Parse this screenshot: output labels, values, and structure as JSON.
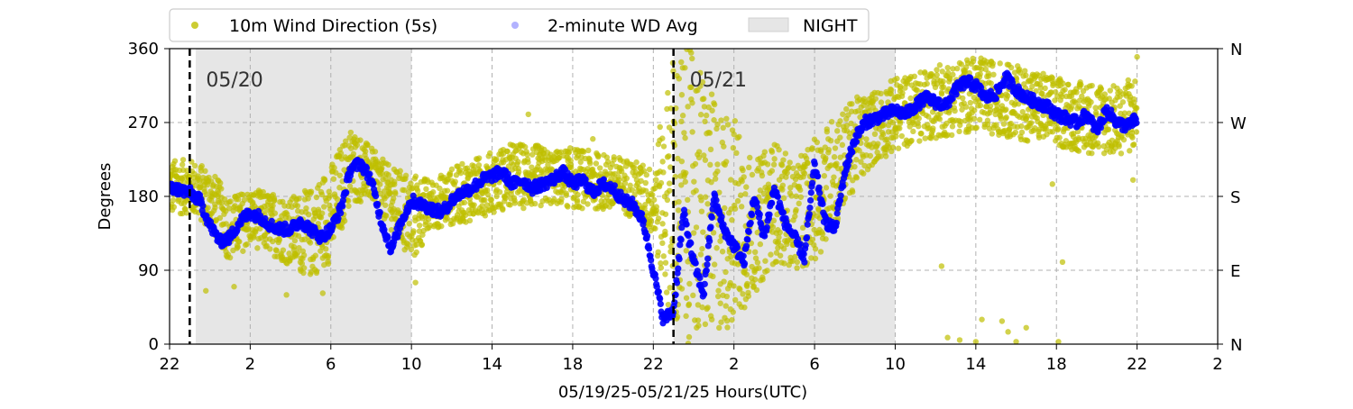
{
  "chart_data": {
    "type": "scatter",
    "xlabel": "05/19/25-05/21/25  Hours(UTC)",
    "ylabel": "Degrees",
    "ylim": [
      0,
      360
    ],
    "xlim_hours": [
      0,
      52
    ],
    "x_tick_labels": [
      "22",
      "2",
      "6",
      "10",
      "14",
      "18",
      "22",
      "2",
      "6",
      "10",
      "14",
      "18",
      "22",
      "2"
    ],
    "x_tick_hours": [
      0,
      4,
      8,
      12,
      16,
      20,
      24,
      28,
      32,
      36,
      40,
      44,
      48,
      52
    ],
    "y_tick_values": [
      0,
      90,
      180,
      270,
      360
    ],
    "y_tick_labels": [
      "0",
      "90",
      "180",
      "270",
      "360"
    ],
    "y_right_labels": [
      "N",
      "E",
      "S",
      "W",
      "N"
    ],
    "grid": true,
    "legend": {
      "placement": "top-outside",
      "entries": [
        {
          "label": "10m Wind Direction (5s)",
          "color": "#bfbf00",
          "marker": "circle"
        },
        {
          "label": "2-minute WD Avg",
          "color": "#0000ff",
          "marker": "circle"
        },
        {
          "label": "NIGHT",
          "color": "#e6e6e6",
          "marker": "patch"
        }
      ]
    },
    "night_shading_hours": [
      [
        1.3,
        12.0
      ],
      [
        25.0,
        36.0
      ]
    ],
    "day_boundaries": [
      {
        "hour": 1.0,
        "label": "05/20"
      },
      {
        "hour": 25.0,
        "label": "05/21"
      }
    ],
    "colors": {
      "wind_5s": "#bfbf00",
      "avg_2min": "#0000ff",
      "night": "#e6e6e6",
      "day_line": "#000000"
    },
    "series": [
      {
        "name": "2-minute WD Avg",
        "hours": [
          0,
          0.5,
          1,
          1.5,
          2,
          2.5,
          3,
          3.5,
          4,
          4.5,
          5,
          5.5,
          6,
          6.5,
          7,
          7.5,
          8,
          8.5,
          9,
          9.5,
          10,
          10.5,
          11,
          11.5,
          12,
          12.5,
          13,
          13.5,
          14,
          14.5,
          15,
          15.5,
          16,
          16.5,
          17,
          17.5,
          18,
          18.5,
          19,
          19.5,
          20,
          20.5,
          21,
          21.5,
          22,
          22.5,
          23,
          23.5,
          24,
          24.5,
          25,
          25.5,
          26,
          26.5,
          27,
          27.5,
          28,
          28.5,
          29,
          29.5,
          30,
          30.5,
          31,
          31.5,
          32,
          32.5,
          33,
          33.5,
          34,
          34.5,
          35,
          35.5,
          36,
          36.5,
          37,
          37.5,
          38,
          38.5,
          39,
          39.5,
          40,
          40.5,
          41,
          41.5,
          42,
          42.5,
          43,
          43.5,
          44,
          44.5,
          45,
          45.5,
          46,
          46.5,
          47,
          47.5,
          48
        ],
        "values": [
          190,
          188,
          185,
          175,
          145,
          125,
          130,
          150,
          160,
          155,
          145,
          140,
          140,
          150,
          140,
          130,
          140,
          165,
          215,
          220,
          200,
          150,
          115,
          150,
          175,
          170,
          165,
          160,
          175,
          185,
          190,
          200,
          205,
          210,
          195,
          200,
          190,
          195,
          200,
          210,
          195,
          200,
          185,
          195,
          190,
          175,
          170,
          150,
          90,
          30,
          40,
          160,
          100,
          60,
          180,
          140,
          120,
          100,
          180,
          130,
          190,
          150,
          130,
          105,
          220,
          150,
          140,
          210,
          250,
          270,
          275,
          280,
          285,
          280,
          290,
          300,
          295,
          290,
          310,
          320,
          315,
          300,
          305,
          325,
          310,
          300,
          295,
          290,
          280,
          275,
          270,
          280,
          260,
          285,
          270,
          265,
          275
        ]
      },
      {
        "name": "10m Wind Direction (5s)",
        "band_hours": [
          0,
          1,
          2,
          3,
          4,
          5,
          6,
          7,
          8,
          9,
          10,
          11,
          12,
          13,
          14,
          15,
          16,
          17,
          18,
          19,
          20,
          21,
          22,
          23,
          24,
          25,
          26,
          27,
          28,
          29,
          30,
          31,
          32,
          33,
          34,
          35,
          36,
          37,
          38,
          39,
          40,
          41,
          42,
          43,
          44,
          45,
          46,
          47,
          48
        ],
        "band_low": [
          155,
          160,
          140,
          100,
          120,
          110,
          95,
          80,
          100,
          170,
          175,
          140,
          95,
          140,
          145,
          150,
          160,
          165,
          165,
          170,
          165,
          165,
          160,
          155,
          130,
          0,
          0,
          10,
          20,
          60,
          100,
          90,
          100,
          140,
          190,
          220,
          235,
          245,
          250,
          255,
          260,
          255,
          250,
          245,
          240,
          235,
          230,
          230,
          235
        ],
        "band_high": [
          225,
          225,
          215,
          180,
          190,
          185,
          180,
          190,
          220,
          265,
          240,
          215,
          210,
          200,
          215,
          225,
          235,
          245,
          245,
          235,
          240,
          235,
          230,
          225,
          215,
          360,
          360,
          300,
          280,
          220,
          250,
          220,
          250,
          280,
          300,
          310,
          325,
          330,
          340,
          345,
          350,
          345,
          340,
          335,
          325,
          320,
          320,
          315,
          330
        ],
        "outliers": [
          {
            "hour": 1.8,
            "value": 65
          },
          {
            "hour": 3.2,
            "value": 70
          },
          {
            "hour": 5.8,
            "value": 60
          },
          {
            "hour": 7.6,
            "value": 62
          },
          {
            "hour": 12.2,
            "value": 75
          },
          {
            "hour": 17.8,
            "value": 280
          },
          {
            "hour": 21.0,
            "value": 250
          },
          {
            "hour": 38.3,
            "value": 95
          },
          {
            "hour": 38.6,
            "value": 8
          },
          {
            "hour": 39.2,
            "value": 5
          },
          {
            "hour": 40.0,
            "value": 3
          },
          {
            "hour": 40.3,
            "value": 30
          },
          {
            "hour": 41.3,
            "value": 28
          },
          {
            "hour": 41.6,
            "value": 15
          },
          {
            "hour": 42.0,
            "value": 3
          },
          {
            "hour": 42.5,
            "value": 20
          },
          {
            "hour": 44.3,
            "value": 100
          },
          {
            "hour": 44.1,
            "value": 3
          },
          {
            "hour": 43.8,
            "value": 195
          },
          {
            "hour": 47.8,
            "value": 200
          },
          {
            "hour": 48.0,
            "value": 350
          }
        ]
      }
    ]
  }
}
